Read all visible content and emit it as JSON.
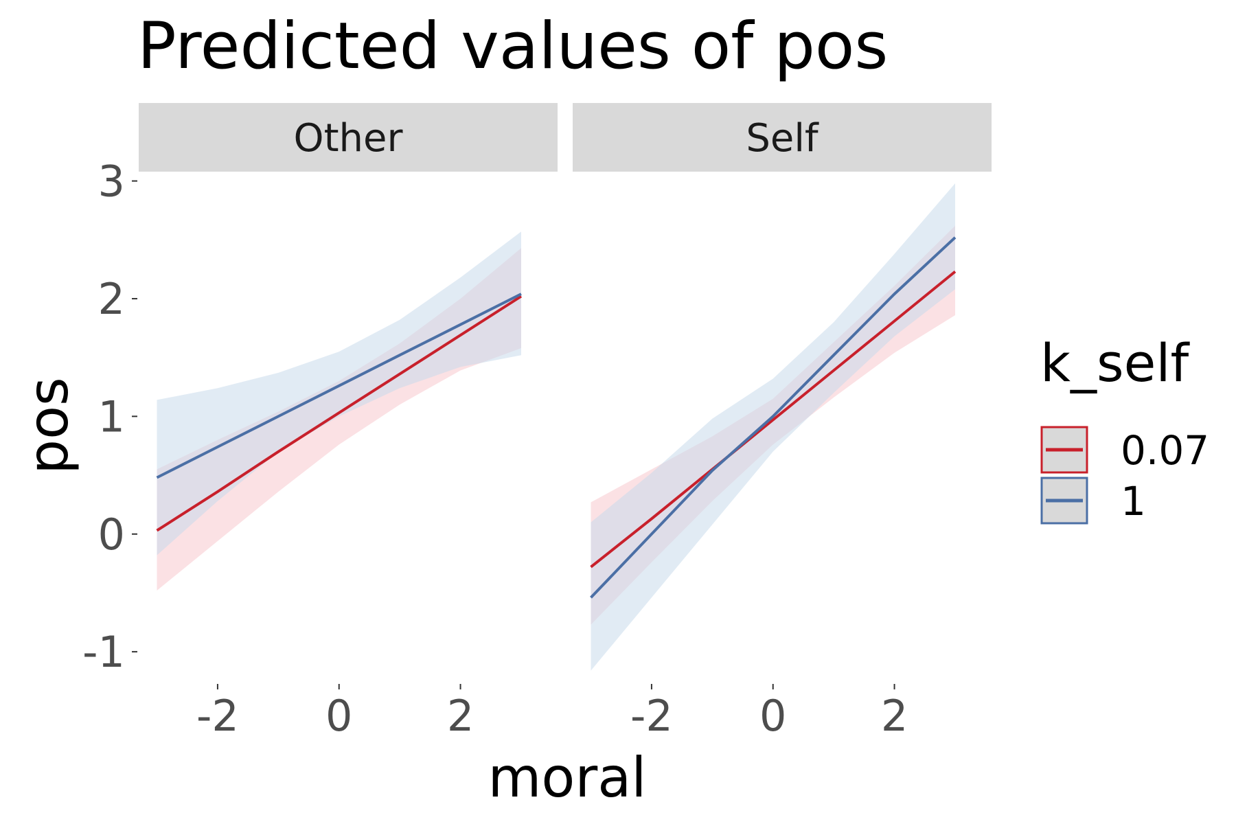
{
  "chart_data": {
    "type": "line",
    "title": "Predicted values of pos",
    "xlabel": "moral",
    "ylabel": "pos",
    "xlim": [
      -3.3,
      3.6
    ],
    "ylim": [
      -1.25,
      3.05
    ],
    "x_ticks": [
      -2,
      0,
      2
    ],
    "x_tick_labels": [
      "-2",
      "0",
      "2"
    ],
    "y_ticks": [
      -1,
      0,
      1,
      2,
      3
    ],
    "y_tick_labels": [
      "-1",
      "0",
      "1",
      "2",
      "3"
    ],
    "grid": false,
    "legend": {
      "title": "k_self",
      "position": "right",
      "entries": [
        {
          "label": "0.07",
          "color": "#c8202b",
          "fill": "#f8c9cd"
        },
        {
          "label": "1",
          "color": "#4b6fa5",
          "fill": "#c9daeb"
        }
      ]
    },
    "panels": [
      {
        "label": "Other",
        "series": [
          {
            "legend_index": 0,
            "x": [
              -3,
              -2,
              -1,
              0,
              1,
              2,
              3
            ],
            "y": [
              0.03,
              0.36,
              0.7,
              1.03,
              1.36,
              1.69,
              2.02
            ],
            "lower": [
              -0.48,
              -0.06,
              0.36,
              0.76,
              1.1,
              1.39,
              1.58
            ],
            "upper": [
              0.55,
              0.8,
              1.04,
              1.3,
              1.62,
              2.0,
              2.43
            ]
          },
          {
            "legend_index": 1,
            "x": [
              -3,
              -2,
              -1,
              0,
              1,
              2,
              3
            ],
            "y": [
              0.48,
              0.74,
              1.0,
              1.26,
              1.52,
              1.78,
              2.04
            ],
            "lower": [
              -0.18,
              0.28,
              0.7,
              1.0,
              1.24,
              1.42,
              1.52
            ],
            "upper": [
              1.14,
              1.24,
              1.37,
              1.55,
              1.82,
              2.18,
              2.57
            ]
          }
        ]
      },
      {
        "label": "Self",
        "series": [
          {
            "legend_index": 0,
            "x": [
              -3,
              -2,
              -1,
              0,
              1,
              2,
              3
            ],
            "y": [
              -0.28,
              0.13,
              0.55,
              0.97,
              1.39,
              1.81,
              2.23
            ],
            "lower": [
              -0.77,
              -0.24,
              0.28,
              0.76,
              1.16,
              1.54,
              1.86
            ],
            "upper": [
              0.27,
              0.55,
              0.83,
              1.15,
              1.63,
              2.11,
              2.62
            ]
          },
          {
            "legend_index": 1,
            "x": [
              -3,
              -2,
              -1,
              0,
              1,
              2,
              3
            ],
            "y": [
              -0.54,
              0.0,
              0.54,
              1.0,
              1.52,
              2.04,
              2.52
            ],
            "lower": [
              -1.16,
              -0.54,
              0.08,
              0.7,
              1.2,
              1.68,
              2.08
            ],
            "upper": [
              0.1,
              0.52,
              0.98,
              1.32,
              1.8,
              2.38,
              2.98
            ]
          }
        ]
      }
    ]
  }
}
